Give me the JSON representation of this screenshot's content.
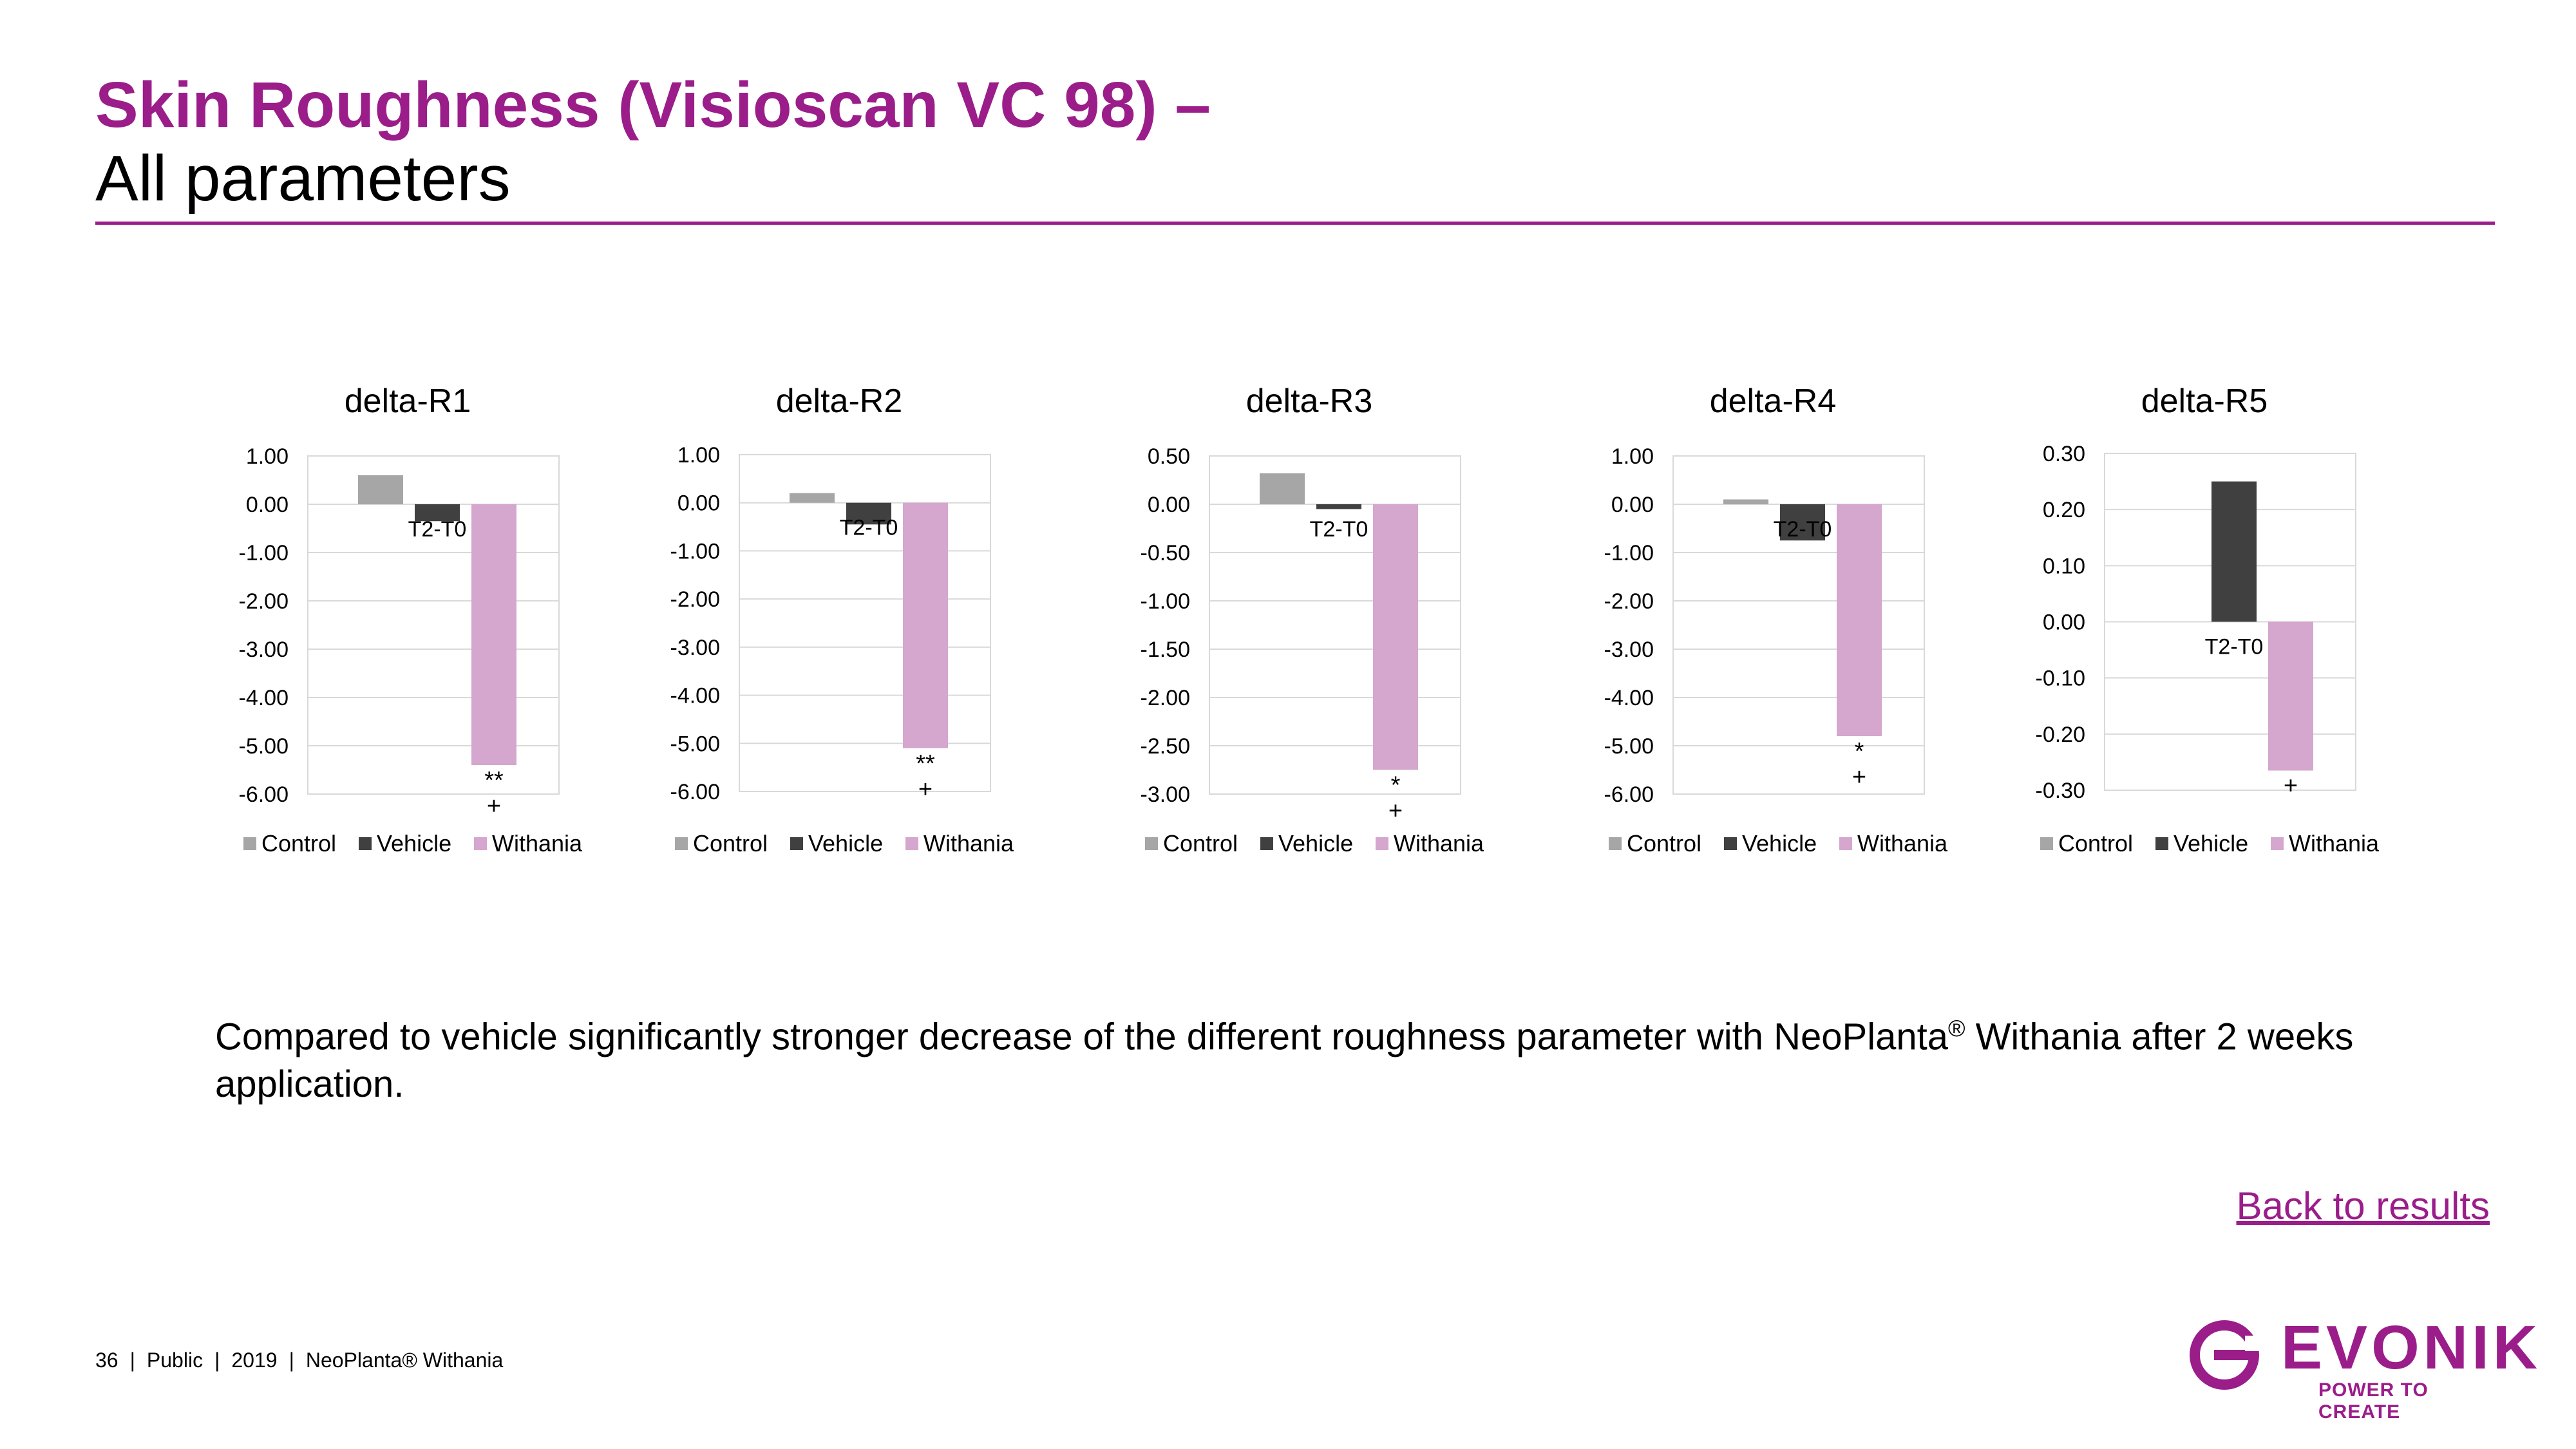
{
  "header": {
    "title_line1": "Skin Roughness (Visioscan VC 98) –",
    "title_line2": "All parameters"
  },
  "colors": {
    "brand": "#9b1d8a",
    "control": "#a6a6a6",
    "vehicle": "#404040",
    "withania": "#d5a6ce",
    "grid": "#d9d9d9"
  },
  "legend": [
    "Control",
    "Vehicle",
    "Withania"
  ],
  "chart_data": [
    {
      "type": "bar",
      "title": "delta-R1",
      "category": "T2-T0",
      "series": [
        {
          "name": "Control",
          "value": 0.6
        },
        {
          "name": "Vehicle",
          "value": -0.35
        },
        {
          "name": "Withania",
          "value": -5.4
        }
      ],
      "ylim": [
        -6.0,
        1.0
      ],
      "ticks": [
        "1.00",
        "0.00",
        "-1.00",
        "-2.00",
        "-3.00",
        "-4.00",
        "-5.00",
        "-6.00"
      ],
      "significance": [
        "**",
        "+"
      ],
      "legend_position": "bottom"
    },
    {
      "type": "bar",
      "title": "delta-R2",
      "category": "T2-T0",
      "series": [
        {
          "name": "Control",
          "value": 0.2
        },
        {
          "name": "Vehicle",
          "value": -0.45
        },
        {
          "name": "Withania",
          "value": -5.1
        }
      ],
      "ylim": [
        -6.0,
        1.0
      ],
      "ticks": [
        "1.00",
        "0.00",
        "-1.00",
        "-2.00",
        "-3.00",
        "-4.00",
        "-5.00",
        "-6.00"
      ],
      "significance": [
        "**",
        "+"
      ],
      "legend_position": "bottom"
    },
    {
      "type": "bar",
      "title": "delta-R3",
      "category": "T2-T0",
      "series": [
        {
          "name": "Control",
          "value": 0.32
        },
        {
          "name": "Vehicle",
          "value": -0.05
        },
        {
          "name": "Withania",
          "value": -2.75
        }
      ],
      "ylim": [
        -3.0,
        0.5
      ],
      "ticks": [
        "0.50",
        "0.00",
        "-0.50",
        "-1.00",
        "-1.50",
        "-2.00",
        "-2.50",
        "-3.00"
      ],
      "significance": [
        "*",
        "+"
      ],
      "legend_position": "bottom"
    },
    {
      "type": "bar",
      "title": "delta-R4",
      "category": "T2-T0",
      "series": [
        {
          "name": "Control",
          "value": 0.1
        },
        {
          "name": "Vehicle",
          "value": -0.75
        },
        {
          "name": "Withania",
          "value": -4.8
        }
      ],
      "ylim": [
        -6.0,
        1.0
      ],
      "ticks": [
        "1.00",
        "0.00",
        "-1.00",
        "-2.00",
        "-3.00",
        "-4.00",
        "-5.00",
        "-6.00"
      ],
      "significance": [
        "*",
        "+"
      ],
      "legend_position": "bottom"
    },
    {
      "type": "bar",
      "title": "delta-R5",
      "category": "T2-T0",
      "series": [
        {
          "name": "Control",
          "value": 0.0
        },
        {
          "name": "Vehicle",
          "value": 0.25
        },
        {
          "name": "Withania",
          "value": -0.265
        }
      ],
      "ylim": [
        -0.3,
        0.3
      ],
      "ticks": [
        "0.30",
        "0.20",
        "0.10",
        "0.00",
        "-0.10",
        "-0.20",
        "-0.30"
      ],
      "significance": [
        "+"
      ],
      "legend_position": "bottom"
    }
  ],
  "body": {
    "text_before": "Compared to vehicle significantly stronger decrease of the different roughness parameter with NeoPlanta",
    "registered": "®",
    "text_after": " Withania after 2 weeks application."
  },
  "back_link": "Back to results",
  "footer": {
    "page": "36",
    "classification": "Public",
    "year": "2019",
    "product": "NeoPlanta® Withania"
  },
  "logo": {
    "wordmark": "EVONIK",
    "tagline": "POWER TO CREATE"
  }
}
